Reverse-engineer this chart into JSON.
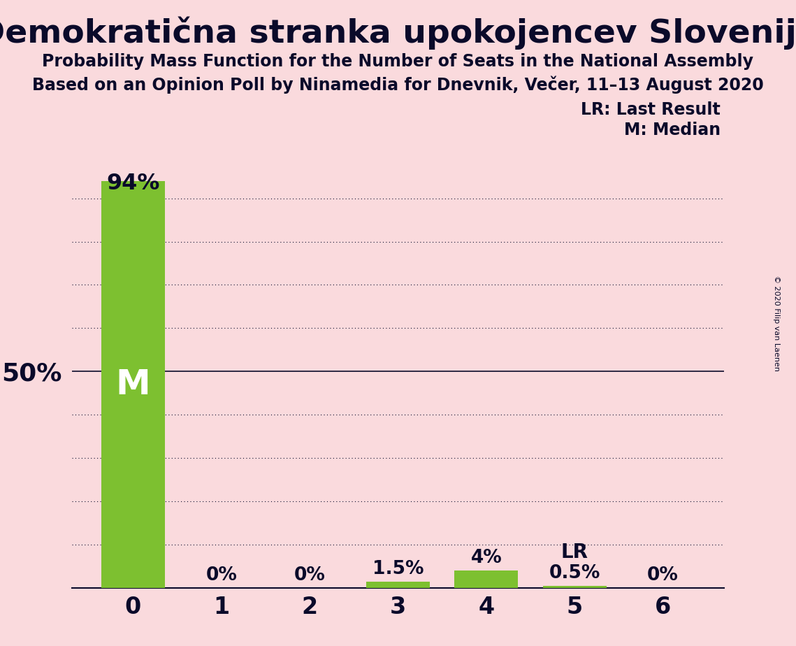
{
  "title": "Demokratična stranka upokojencev Slovenije",
  "subtitle1": "Probability Mass Function for the Number of Seats in the National Assembly",
  "subtitle2": "Based on an Opinion Poll by Ninamedia for Dnevnik, Večer, 11–13 August 2020",
  "copyright_text": "© 2020 Filip van Laenen",
  "categories": [
    0,
    1,
    2,
    3,
    4,
    5,
    6
  ],
  "values": [
    94,
    0,
    0,
    1.5,
    4,
    0.5,
    0
  ],
  "bar_color": "#7dc030",
  "background_color": "#fadadd",
  "bar_labels": [
    "94%",
    "0%",
    "0%",
    "1.5%",
    "4%",
    "0.5%",
    "0%"
  ],
  "median_seat": 0,
  "last_result_seat": 5,
  "ylabel_50": "50%",
  "legend_lr": "LR: Last Result",
  "legend_m": "M: Median",
  "ylim": [
    0,
    100
  ],
  "y_ticks": [
    10,
    20,
    30,
    40,
    50,
    60,
    70,
    80,
    90
  ],
  "title_fontsize": 34,
  "subtitle_fontsize": 17,
  "bar_label_fontsize": 19,
  "axis_label_fontsize": 20,
  "legend_fontsize": 17,
  "median_label_fontsize": 36,
  "lr_label_fontsize": 20
}
